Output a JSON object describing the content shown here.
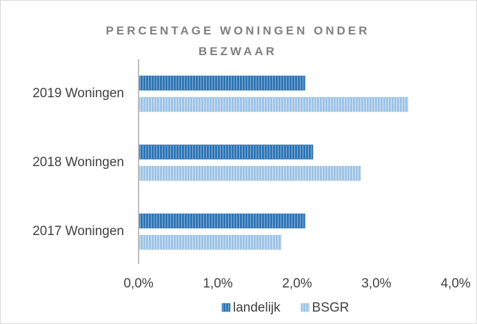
{
  "chart_data": {
    "type": "bar",
    "orientation": "horizontal",
    "title": "PERCENTAGE WONINGEN ONDER BEZWAAR",
    "categories": [
      "2017 Woningen",
      "2018 Woningen",
      "2019 Woningen"
    ],
    "series": [
      {
        "name": "landelijk",
        "color": "#2e75b6",
        "values": [
          2.1,
          2.2,
          2.1
        ]
      },
      {
        "name": "BSGR",
        "color": "#9dc3e6",
        "values": [
          1.8,
          2.8,
          3.4
        ]
      }
    ],
    "xlim": [
      0,
      4
    ],
    "xticks": [
      {
        "value": 0,
        "label": "0,0%"
      },
      {
        "value": 1,
        "label": "1,0%"
      },
      {
        "value": 2,
        "label": "2,0%"
      },
      {
        "value": 3,
        "label": "3,0%"
      },
      {
        "value": 4,
        "label": "4,0%"
      }
    ],
    "legend": "bottom"
  }
}
